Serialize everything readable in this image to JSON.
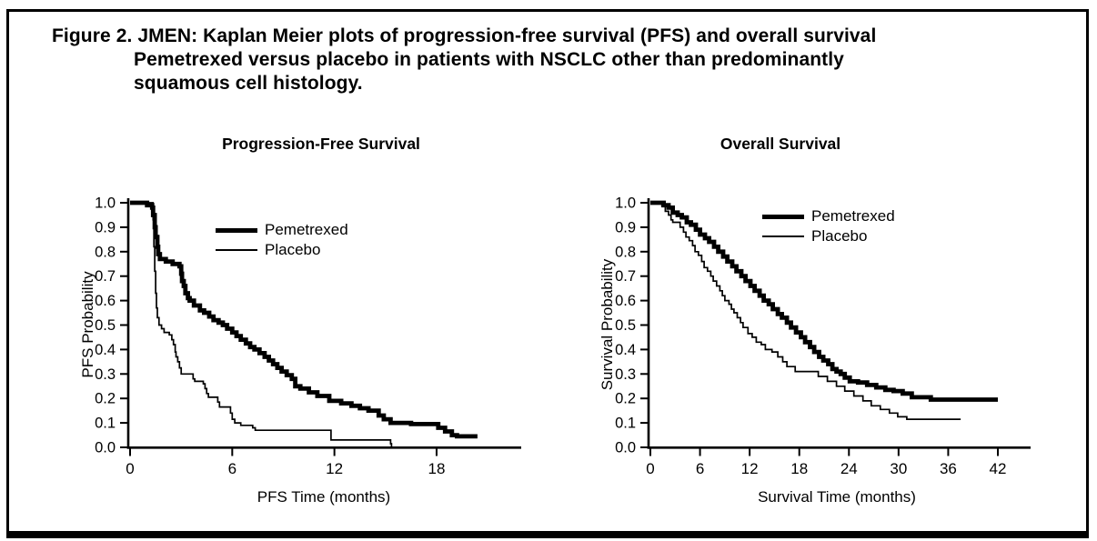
{
  "figure": {
    "title_line1": "Figure 2. JMEN: Kaplan Meier plots of progression-free survival (PFS) and overall survival",
    "title_line2": "Pemetrexed versus placebo in patients with NSCLC other than predominantly",
    "title_line3": "squamous cell histology.",
    "ink_color": "#000000",
    "background_color": "#ffffff"
  },
  "chart_data": [
    {
      "type": "line",
      "subtype": "kaplan-meier-step",
      "title": "Progression-Free Survival",
      "xlabel": "PFS Time (months)",
      "ylabel": "PFS Probability",
      "xlim": [
        0,
        23
      ],
      "ylim": [
        0.0,
        1.0
      ],
      "grid": false,
      "legend_position": "upper-right-inside",
      "x_tick_values": [
        0,
        6,
        12,
        18
      ],
      "x_tick_labels": [
        "0",
        "6",
        "12",
        "18"
      ],
      "y_tick_values": [
        0.0,
        0.1,
        0.2,
        0.3,
        0.4,
        0.5,
        0.6,
        0.7,
        0.8,
        0.9,
        1.0
      ],
      "y_tick_labels": [
        "0.0",
        "0.1",
        "0.2",
        "0.3",
        "0.4",
        "0.5",
        "0.6",
        "0.7",
        "0.8",
        "0.9",
        "1.0"
      ],
      "series": [
        {
          "name": "Pemetrexed",
          "line_weight": "thick",
          "points": [
            [
              0,
              1.0
            ],
            [
              0.9,
              1.0
            ],
            [
              1.0,
              0.99
            ],
            [
              1.3,
              0.98
            ],
            [
              1.35,
              0.95
            ],
            [
              1.45,
              0.9
            ],
            [
              1.5,
              0.86
            ],
            [
              1.6,
              0.82
            ],
            [
              1.65,
              0.79
            ],
            [
              1.75,
              0.77
            ],
            [
              2.1,
              0.76
            ],
            [
              2.5,
              0.75
            ],
            [
              2.9,
              0.74
            ],
            [
              3.0,
              0.71
            ],
            [
              3.05,
              0.68
            ],
            [
              3.15,
              0.66
            ],
            [
              3.25,
              0.63
            ],
            [
              3.4,
              0.61
            ],
            [
              3.5,
              0.6
            ],
            [
              3.75,
              0.58
            ],
            [
              4.1,
              0.56
            ],
            [
              4.35,
              0.55
            ],
            [
              4.65,
              0.535
            ],
            [
              4.9,
              0.52
            ],
            [
              5.2,
              0.51
            ],
            [
              5.45,
              0.5
            ],
            [
              5.7,
              0.485
            ],
            [
              6.0,
              0.47
            ],
            [
              6.25,
              0.455
            ],
            [
              6.5,
              0.44
            ],
            [
              6.8,
              0.425
            ],
            [
              7.05,
              0.41
            ],
            [
              7.3,
              0.4
            ],
            [
              7.6,
              0.385
            ],
            [
              7.9,
              0.37
            ],
            [
              8.15,
              0.355
            ],
            [
              8.4,
              0.34
            ],
            [
              8.65,
              0.325
            ],
            [
              8.9,
              0.31
            ],
            [
              9.2,
              0.295
            ],
            [
              9.5,
              0.28
            ],
            [
              9.7,
              0.25
            ],
            [
              10.0,
              0.24
            ],
            [
              10.5,
              0.225
            ],
            [
              11.0,
              0.21
            ],
            [
              11.7,
              0.19
            ],
            [
              12.4,
              0.18
            ],
            [
              13.0,
              0.17
            ],
            [
              13.5,
              0.16
            ],
            [
              14.0,
              0.15
            ],
            [
              14.6,
              0.13
            ],
            [
              14.9,
              0.115
            ],
            [
              15.3,
              0.1
            ],
            [
              16.5,
              0.095
            ],
            [
              18.1,
              0.08
            ],
            [
              18.5,
              0.065
            ],
            [
              18.9,
              0.05
            ],
            [
              19.2,
              0.045
            ],
            [
              20.4,
              0.045
            ]
          ]
        },
        {
          "name": "Placebo",
          "line_weight": "thin",
          "points": [
            [
              0,
              1.0
            ],
            [
              1.3,
              1.0
            ],
            [
              1.35,
              0.93
            ],
            [
              1.4,
              0.82
            ],
            [
              1.45,
              0.72
            ],
            [
              1.5,
              0.63
            ],
            [
              1.55,
              0.57
            ],
            [
              1.6,
              0.53
            ],
            [
              1.7,
              0.5
            ],
            [
              1.85,
              0.485
            ],
            [
              2.0,
              0.47
            ],
            [
              2.3,
              0.46
            ],
            [
              2.45,
              0.44
            ],
            [
              2.55,
              0.42
            ],
            [
              2.65,
              0.39
            ],
            [
              2.7,
              0.37
            ],
            [
              2.8,
              0.35
            ],
            [
              2.9,
              0.325
            ],
            [
              3.0,
              0.3
            ],
            [
              3.7,
              0.28
            ],
            [
              3.8,
              0.27
            ],
            [
              4.3,
              0.26
            ],
            [
              4.4,
              0.24
            ],
            [
              4.5,
              0.22
            ],
            [
              4.6,
              0.205
            ],
            [
              5.15,
              0.185
            ],
            [
              5.25,
              0.165
            ],
            [
              5.9,
              0.14
            ],
            [
              6.0,
              0.115
            ],
            [
              6.15,
              0.1
            ],
            [
              6.5,
              0.09
            ],
            [
              7.2,
              0.08
            ],
            [
              7.35,
              0.07
            ],
            [
              11.8,
              0.03
            ],
            [
              15.3,
              0.015
            ],
            [
              15.35,
              0.0
            ]
          ]
        }
      ]
    },
    {
      "type": "line",
      "subtype": "kaplan-meier-step",
      "title": "Overall Survival",
      "xlabel": "Survival Time (months)",
      "ylabel": "Survival Probability",
      "xlim": [
        0,
        46
      ],
      "ylim": [
        0.0,
        1.0
      ],
      "grid": false,
      "legend_position": "upper-right-inside",
      "x_tick_values": [
        0,
        6,
        12,
        18,
        24,
        30,
        36,
        42
      ],
      "x_tick_labels": [
        "0",
        "6",
        "12",
        "18",
        "24",
        "30",
        "36",
        "42"
      ],
      "y_tick_values": [
        0.0,
        0.1,
        0.2,
        0.3,
        0.4,
        0.5,
        0.6,
        0.7,
        0.8,
        0.9,
        1.0
      ],
      "y_tick_labels": [
        "0.0",
        "0.1",
        "0.2",
        "0.3",
        "0.4",
        "0.5",
        "0.6",
        "0.7",
        "0.8",
        "0.9",
        "1.0"
      ],
      "series": [
        {
          "name": "Pemetrexed",
          "line_weight": "thick",
          "points": [
            [
              0,
              1.0
            ],
            [
              1.4,
              1.0
            ],
            [
              1.6,
              0.99
            ],
            [
              2.2,
              0.98
            ],
            [
              2.7,
              0.96
            ],
            [
              3.3,
              0.95
            ],
            [
              3.8,
              0.94
            ],
            [
              4.4,
              0.92
            ],
            [
              4.9,
              0.91
            ],
            [
              5.5,
              0.89
            ],
            [
              6.0,
              0.87
            ],
            [
              6.6,
              0.855
            ],
            [
              7.1,
              0.84
            ],
            [
              7.7,
              0.82
            ],
            [
              8.2,
              0.8
            ],
            [
              8.8,
              0.78
            ],
            [
              9.3,
              0.76
            ],
            [
              9.9,
              0.74
            ],
            [
              10.4,
              0.72
            ],
            [
              11.0,
              0.7
            ],
            [
              11.5,
              0.68
            ],
            [
              12.1,
              0.66
            ],
            [
              12.6,
              0.64
            ],
            [
              13.2,
              0.62
            ],
            [
              13.7,
              0.6
            ],
            [
              14.3,
              0.585
            ],
            [
              14.8,
              0.565
            ],
            [
              15.4,
              0.545
            ],
            [
              15.9,
              0.53
            ],
            [
              16.5,
              0.51
            ],
            [
              17.0,
              0.49
            ],
            [
              17.6,
              0.47
            ],
            [
              18.2,
              0.45
            ],
            [
              18.7,
              0.43
            ],
            [
              19.3,
              0.41
            ],
            [
              19.8,
              0.39
            ],
            [
              20.4,
              0.37
            ],
            [
              20.9,
              0.355
            ],
            [
              21.5,
              0.34
            ],
            [
              22.0,
              0.32
            ],
            [
              22.5,
              0.31
            ],
            [
              23.0,
              0.3
            ],
            [
              23.5,
              0.285
            ],
            [
              24.1,
              0.27
            ],
            [
              25.1,
              0.265
            ],
            [
              26.2,
              0.255
            ],
            [
              27.3,
              0.245
            ],
            [
              28.4,
              0.235
            ],
            [
              29.4,
              0.23
            ],
            [
              30.5,
              0.22
            ],
            [
              31.6,
              0.205
            ],
            [
              33.9,
              0.195
            ],
            [
              42.0,
              0.195
            ]
          ]
        },
        {
          "name": "Placebo",
          "line_weight": "thin",
          "points": [
            [
              0,
              1.0
            ],
            [
              1.2,
              1.0
            ],
            [
              1.4,
              0.985
            ],
            [
              1.8,
              0.965
            ],
            [
              2.2,
              0.95
            ],
            [
              2.5,
              0.93
            ],
            [
              2.7,
              0.92
            ],
            [
              3.6,
              0.9
            ],
            [
              4.0,
              0.88
            ],
            [
              4.3,
              0.86
            ],
            [
              4.7,
              0.845
            ],
            [
              5.1,
              0.825
            ],
            [
              5.4,
              0.8
            ],
            [
              5.8,
              0.785
            ],
            [
              6.2,
              0.76
            ],
            [
              6.5,
              0.735
            ],
            [
              6.9,
              0.72
            ],
            [
              7.3,
              0.7
            ],
            [
              7.6,
              0.68
            ],
            [
              8.0,
              0.66
            ],
            [
              8.4,
              0.64
            ],
            [
              8.7,
              0.62
            ],
            [
              9.0,
              0.6
            ],
            [
              9.5,
              0.585
            ],
            [
              9.8,
              0.565
            ],
            [
              10.1,
              0.55
            ],
            [
              10.5,
              0.53
            ],
            [
              10.9,
              0.51
            ],
            [
              11.2,
              0.49
            ],
            [
              11.8,
              0.465
            ],
            [
              12.3,
              0.45
            ],
            [
              12.8,
              0.43
            ],
            [
              13.4,
              0.42
            ],
            [
              13.9,
              0.4
            ],
            [
              14.7,
              0.39
            ],
            [
              15.4,
              0.37
            ],
            [
              16.0,
              0.35
            ],
            [
              16.5,
              0.33
            ],
            [
              17.5,
              0.31
            ],
            [
              20.3,
              0.29
            ],
            [
              21.4,
              0.27
            ],
            [
              22.5,
              0.25
            ],
            [
              23.5,
              0.23
            ],
            [
              24.6,
              0.21
            ],
            [
              25.7,
              0.19
            ],
            [
              26.7,
              0.17
            ],
            [
              27.8,
              0.155
            ],
            [
              28.9,
              0.14
            ],
            [
              29.9,
              0.125
            ],
            [
              30.3,
              0.125
            ],
            [
              31.0,
              0.115
            ],
            [
              37.5,
              0.115
            ]
          ]
        }
      ]
    }
  ]
}
